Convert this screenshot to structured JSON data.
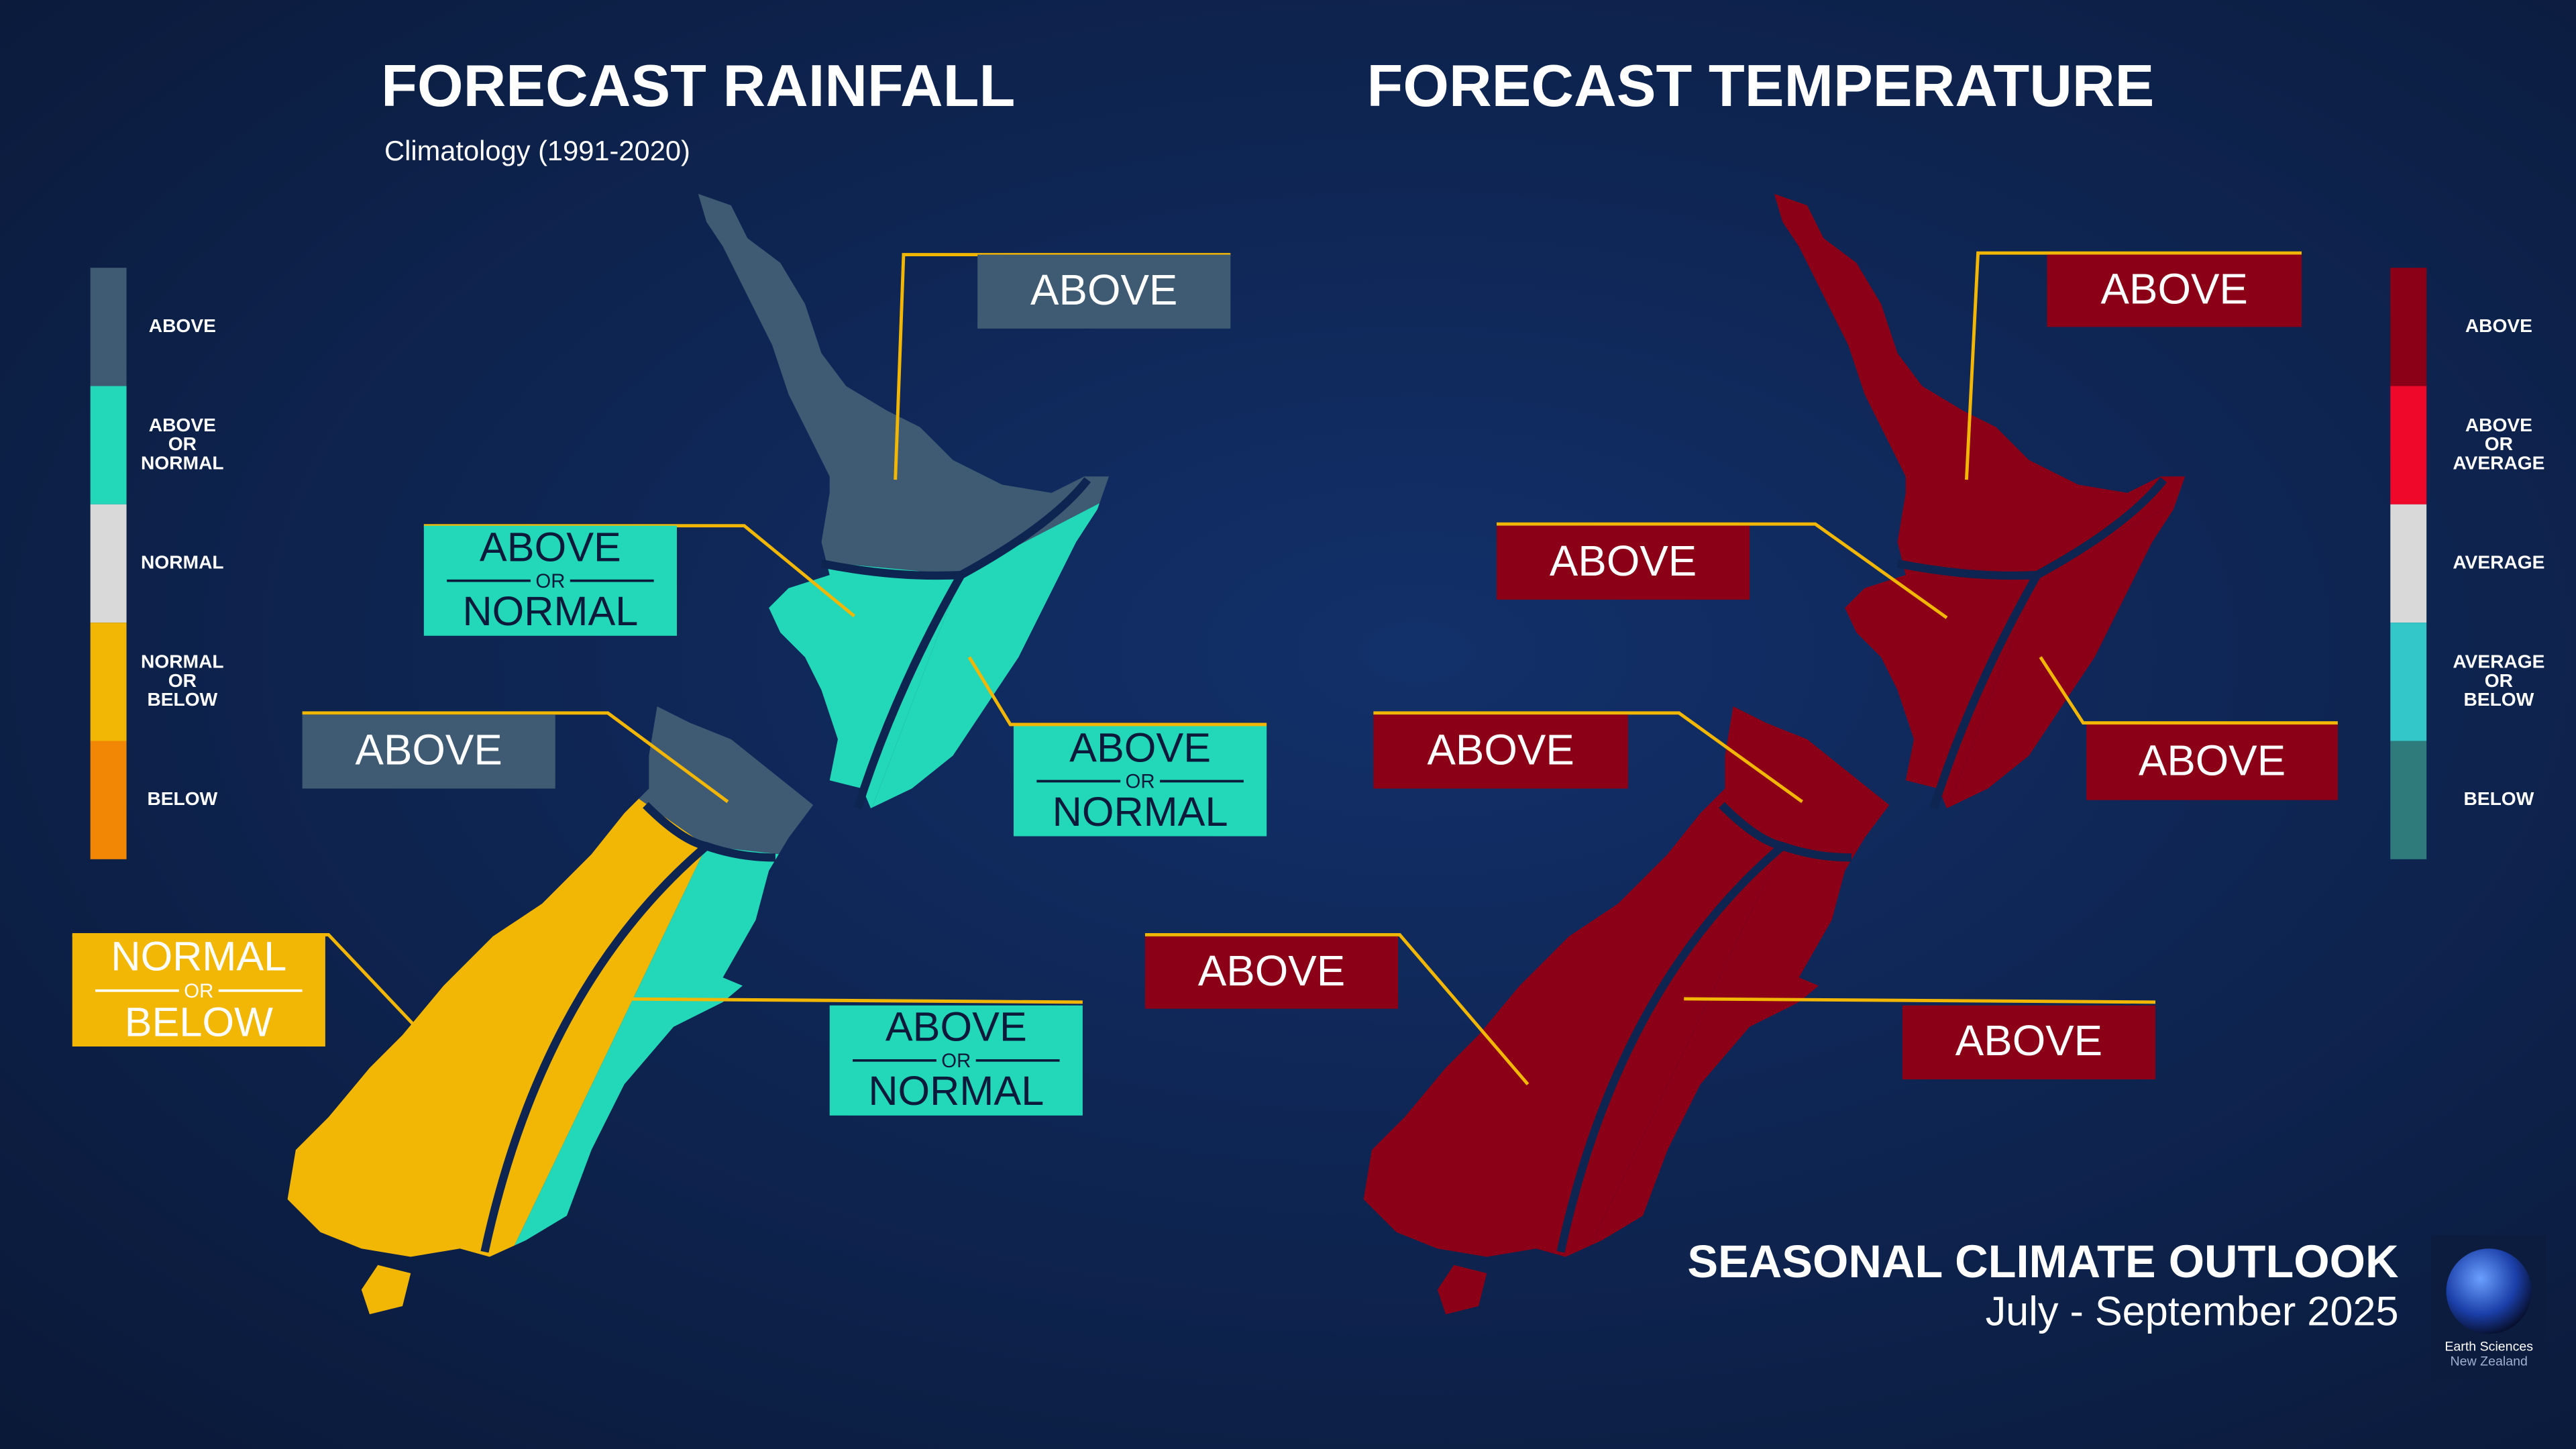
{
  "rainfall": {
    "title": "FORECAST RAINFALL",
    "subtitle": "Climatology (1991-2020)",
    "legend": [
      {
        "lines": [
          "ABOVE"
        ],
        "color": "#3f5a73"
      },
      {
        "lines": [
          "ABOVE",
          "OR",
          "NORMAL"
        ],
        "color": "#22d8b8"
      },
      {
        "lines": [
          "NORMAL"
        ],
        "color": "#d9d9d9"
      },
      {
        "lines": [
          "NORMAL",
          "OR",
          "BELOW"
        ],
        "color": "#f2b705"
      },
      {
        "lines": [
          "BELOW"
        ],
        "color": "#f28705"
      }
    ],
    "region_colors": [
      "#3f5a73",
      "#22d8b8",
      "#22d8b8",
      "#3f5a73",
      "#f2b705",
      "#22d8b8"
    ],
    "callouts": [
      {
        "lines": [
          "ABOVE"
        ],
        "color": "#3f5a73",
        "text_color": "#ffffff"
      },
      {
        "lines": [
          "ABOVE",
          "OR",
          "NORMAL"
        ],
        "color": "#22d8b8",
        "text_color": "#0b1a3a"
      },
      {
        "lines": [
          "ABOVE",
          "OR",
          "NORMAL"
        ],
        "color": "#22d8b8",
        "text_color": "#0b1a3a"
      },
      {
        "lines": [
          "ABOVE"
        ],
        "color": "#3f5a73",
        "text_color": "#ffffff"
      },
      {
        "lines": [
          "NORMAL",
          "OR",
          "BELOW"
        ],
        "color": "#f2b705",
        "text_color": "#ffffff"
      },
      {
        "lines": [
          "ABOVE",
          "OR",
          "NORMAL"
        ],
        "color": "#22d8b8",
        "text_color": "#0b1a3a"
      }
    ]
  },
  "temperature": {
    "title": "FORECAST TEMPERATURE",
    "legend": [
      {
        "lines": [
          "ABOVE"
        ],
        "color": "#8b0016"
      },
      {
        "lines": [
          "ABOVE",
          "OR",
          "AVERAGE"
        ],
        "color": "#f0082a"
      },
      {
        "lines": [
          "AVERAGE"
        ],
        "color": "#d9d9d9"
      },
      {
        "lines": [
          "AVERAGE",
          "OR",
          "BELOW"
        ],
        "color": "#33c7c9"
      },
      {
        "lines": [
          "BELOW"
        ],
        "color": "#2f7b7c"
      }
    ],
    "region_colors": [
      "#8b0016",
      "#8b0016",
      "#8b0016",
      "#8b0016",
      "#8b0016",
      "#8b0016"
    ],
    "callouts": [
      {
        "lines": [
          "ABOVE"
        ],
        "color": "#8b0016",
        "text_color": "#ffffff"
      },
      {
        "lines": [
          "ABOVE"
        ],
        "color": "#8b0016",
        "text_color": "#ffffff"
      },
      {
        "lines": [
          "ABOVE"
        ],
        "color": "#8b0016",
        "text_color": "#ffffff"
      },
      {
        "lines": [
          "ABOVE"
        ],
        "color": "#8b0016",
        "text_color": "#ffffff"
      },
      {
        "lines": [
          "ABOVE"
        ],
        "color": "#8b0016",
        "text_color": "#ffffff"
      },
      {
        "lines": [
          "ABOVE"
        ],
        "color": "#8b0016",
        "text_color": "#ffffff"
      }
    ]
  },
  "footer": {
    "title": "SEASONAL CLIMATE OUTLOOK",
    "period": "July - September 2025"
  },
  "logo": {
    "line1": "Earth Sciences",
    "line2": "New Zealand"
  }
}
